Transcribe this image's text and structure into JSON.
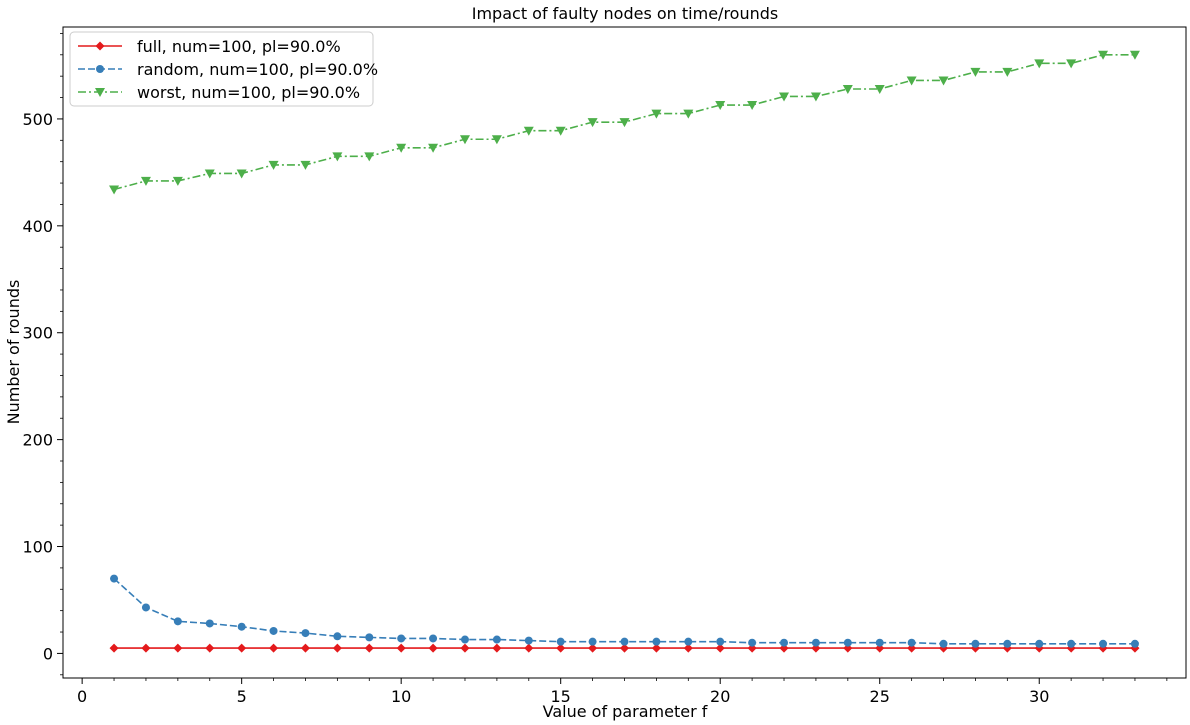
{
  "chart_data": {
    "type": "line",
    "title": "Impact of faulty nodes on time/rounds",
    "xlabel": "Value of parameter f",
    "ylabel": "Number of rounds",
    "xlim": [
      -0.6,
      34.6
    ],
    "ylim": [
      -23,
      586
    ],
    "xticks": [
      0,
      5,
      10,
      15,
      20,
      25,
      30
    ],
    "yticks": [
      0,
      100,
      200,
      300,
      400,
      500
    ],
    "grid": false,
    "legend_position": "top-left",
    "x": [
      1,
      2,
      3,
      4,
      5,
      6,
      7,
      8,
      9,
      10,
      11,
      12,
      13,
      14,
      15,
      16,
      17,
      18,
      19,
      20,
      21,
      22,
      23,
      24,
      25,
      26,
      27,
      28,
      29,
      30,
      31,
      32,
      33
    ],
    "series": [
      {
        "name": "full, num=100, pl=90.0%",
        "color": "#e41a1c",
        "linestyle": "solid",
        "marker": "diamond",
        "values": [
          5,
          5,
          5,
          5,
          5,
          5,
          5,
          5,
          5,
          5,
          5,
          5,
          5,
          5,
          5,
          5,
          5,
          5,
          5,
          5,
          5,
          5,
          5,
          5,
          5,
          5,
          5,
          5,
          5,
          5,
          5,
          5,
          5
        ]
      },
      {
        "name": "random, num=100, pl=90.0%",
        "color": "#377eb8",
        "linestyle": "dashed",
        "marker": "circle",
        "values": [
          70,
          43,
          30,
          28,
          25,
          21,
          19,
          16,
          15,
          14,
          14,
          13,
          13,
          12,
          11,
          11,
          11,
          11,
          11,
          11,
          10,
          10,
          10,
          10,
          10,
          10,
          9,
          9,
          9,
          9,
          9,
          9,
          9
        ]
      },
      {
        "name": "worst, num=100, pl=90.0%",
        "color": "#4daf4a",
        "linestyle": "dashdot",
        "marker": "triangle-down",
        "values": [
          434,
          442,
          442,
          449,
          449,
          457,
          457,
          465,
          465,
          473,
          473,
          481,
          481,
          489,
          489,
          497,
          497,
          505,
          505,
          513,
          513,
          521,
          521,
          528,
          528,
          536,
          536,
          544,
          544,
          552,
          552,
          560,
          560
        ]
      }
    ]
  }
}
